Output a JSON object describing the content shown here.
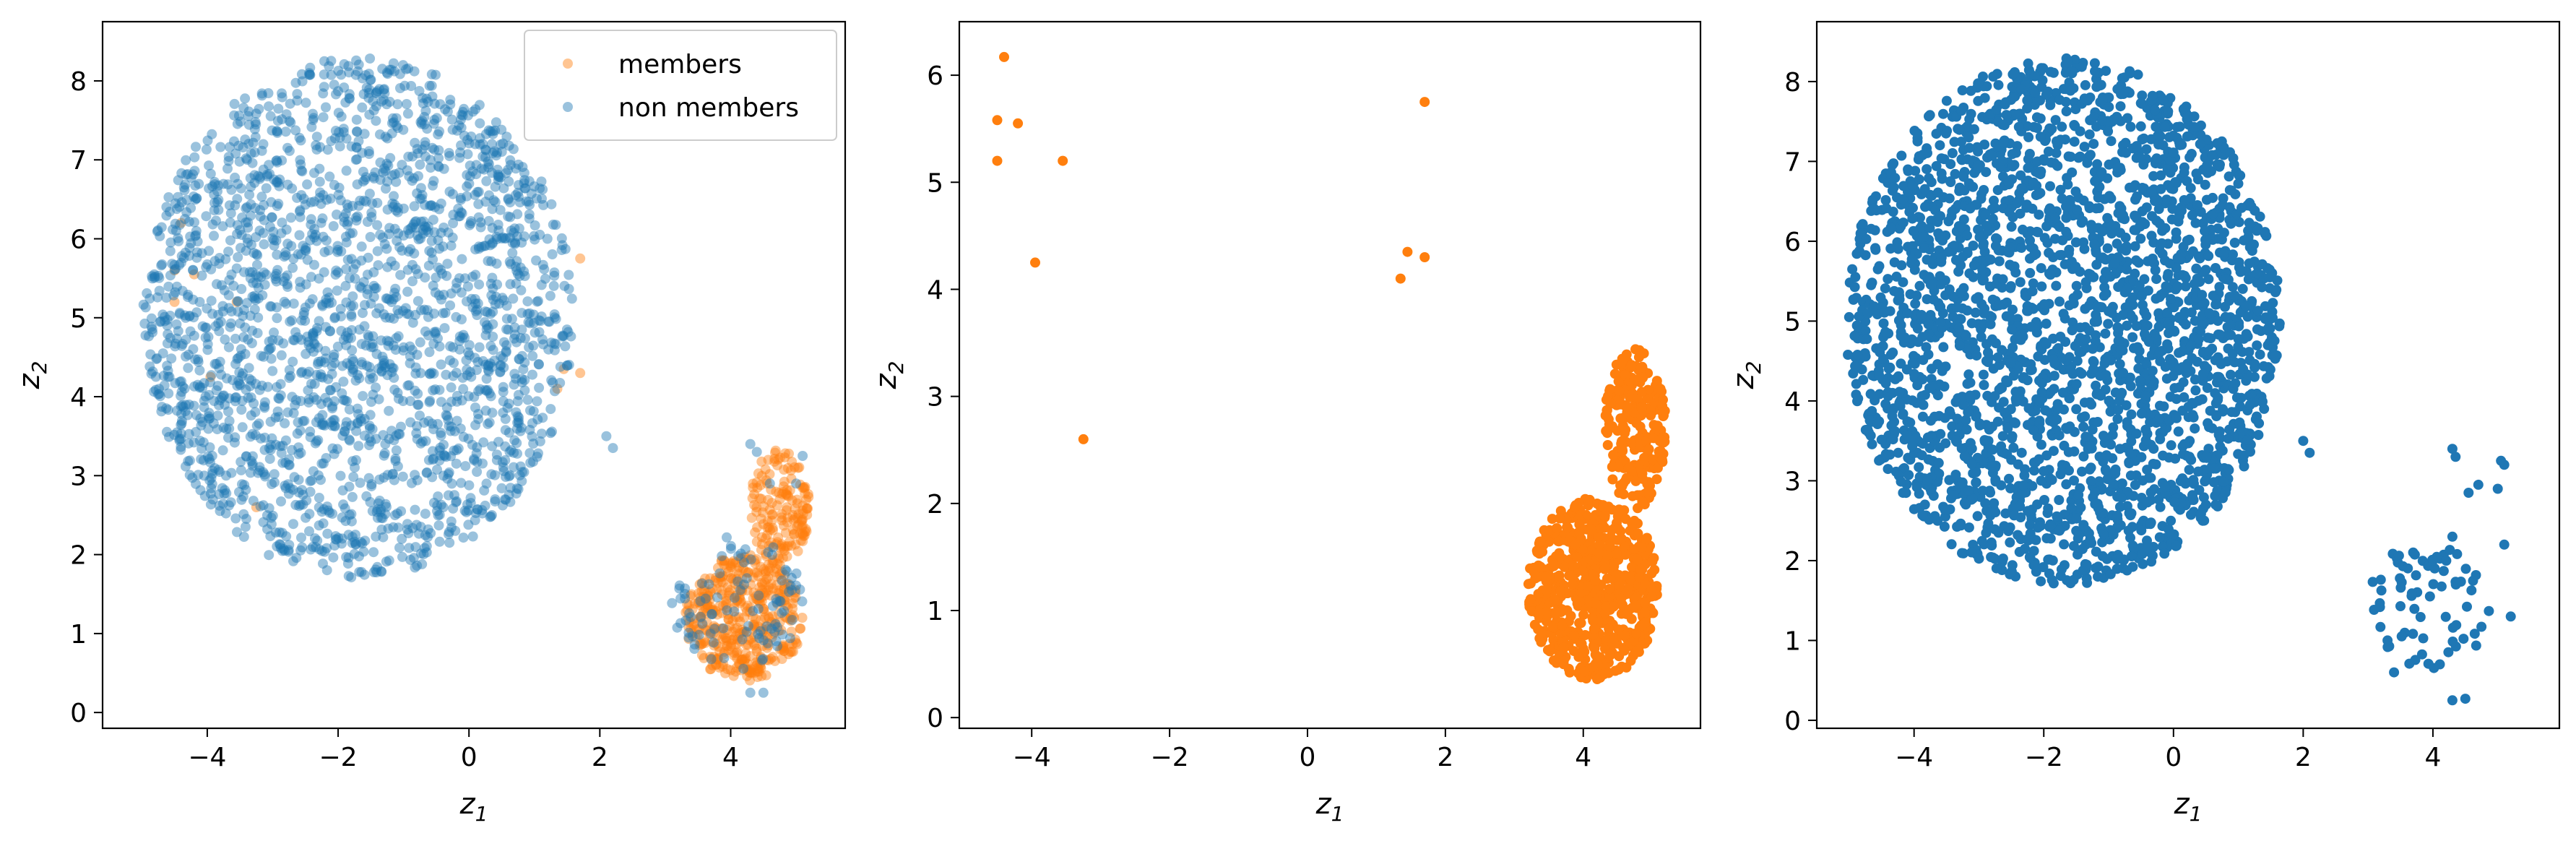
{
  "figure": {
    "background": "#ffffff"
  },
  "colors": {
    "members": "#ff7f0e",
    "non_members": "#1f77b4"
  },
  "chart_data": [
    {
      "type": "scatter",
      "xlabel": "z_1",
      "ylabel": "z_2",
      "xlim": [
        -5.6,
        5.75
      ],
      "ylim": [
        -0.2,
        8.75
      ],
      "xticks": [
        -4,
        -2,
        0,
        2,
        4
      ],
      "yticks": [
        0,
        1,
        2,
        3,
        4,
        5,
        6,
        7,
        8
      ],
      "grid": false,
      "legend": {
        "position": "top-right",
        "entries": [
          "members",
          "non members"
        ]
      },
      "series": [
        {
          "name": "members",
          "color": "#ff7f0e",
          "alpha": 0.45,
          "clusters": [
            {
              "shape": "blob",
              "center": [
                4.2,
                1.2
              ],
              "radius": [
                0.9,
                0.8
              ],
              "count": 420
            },
            {
              "shape": "blob",
              "center": [
                4.75,
                2.6
              ],
              "radius": [
                0.45,
                0.75
              ],
              "count": 160
            }
          ],
          "points": [
            [
              -4.4,
              6.2
            ],
            [
              -4.5,
              5.6
            ],
            [
              -4.2,
              5.55
            ],
            [
              -3.55,
              5.2
            ],
            [
              -4.5,
              5.2
            ],
            [
              -3.95,
              4.25
            ],
            [
              -3.25,
              2.6
            ],
            [
              1.7,
              5.75
            ],
            [
              1.45,
              4.35
            ],
            [
              1.35,
              4.1
            ],
            [
              1.7,
              4.3
            ]
          ]
        },
        {
          "name": "non members",
          "color": "#1f77b4",
          "alpha": 0.45,
          "clusters": [
            {
              "shape": "blob",
              "center": [
                -1.7,
                5.0
              ],
              "radius": [
                3.3,
                3.3
              ],
              "count": 2200
            },
            {
              "shape": "blob",
              "center": [
                4.1,
                1.4
              ],
              "radius": [
                1.0,
                0.85
              ],
              "count": 95
            }
          ],
          "points": [
            [
              2.1,
              3.5
            ],
            [
              2.2,
              3.35
            ],
            [
              0.4,
              2.7
            ],
            [
              0.55,
              2.7
            ],
            [
              0.35,
              2.5
            ],
            [
              4.3,
              0.25
            ],
            [
              4.5,
              0.25
            ],
            [
              4.3,
              3.4
            ],
            [
              4.4,
              3.3
            ],
            [
              5.1,
              3.25
            ],
            [
              5.0,
              2.9
            ],
            [
              4.6,
              2.9
            ]
          ]
        }
      ]
    },
    {
      "type": "scatter",
      "xlabel": "z_1",
      "ylabel": "z_2",
      "xlim": [
        -5.05,
        5.7
      ],
      "ylim": [
        -0.1,
        6.5
      ],
      "xticks": [
        -4,
        -2,
        0,
        2,
        4
      ],
      "yticks": [
        0,
        1,
        2,
        3,
        4,
        5,
        6
      ],
      "grid": false,
      "series": [
        {
          "name": "",
          "color": "#ff7f0e",
          "alpha": 1,
          "clusters": [
            {
              "shape": "blob",
              "center": [
                4.15,
                1.2
              ],
              "radius": [
                0.95,
                0.85
              ],
              "count": 650
            },
            {
              "shape": "blob",
              "center": [
                4.75,
                2.7
              ],
              "radius": [
                0.45,
                0.75
              ],
              "count": 220
            }
          ],
          "points": [
            [
              -4.4,
              6.17
            ],
            [
              -4.5,
              5.58
            ],
            [
              -4.2,
              5.55
            ],
            [
              -3.55,
              5.2
            ],
            [
              -4.5,
              5.2
            ],
            [
              -3.95,
              4.25
            ],
            [
              -3.25,
              2.6
            ],
            [
              1.7,
              5.75
            ],
            [
              1.45,
              4.35
            ],
            [
              1.35,
              4.1
            ],
            [
              1.7,
              4.3
            ]
          ]
        }
      ]
    },
    {
      "type": "scatter",
      "xlabel": "z_1",
      "ylabel": "z_2",
      "xlim": [
        -5.5,
        5.95
      ],
      "ylim": [
        -0.1,
        8.75
      ],
      "xticks": [
        -4,
        -2,
        0,
        2,
        4
      ],
      "yticks": [
        0,
        1,
        2,
        3,
        4,
        5,
        6,
        7,
        8
      ],
      "grid": false,
      "series": [
        {
          "name": "",
          "color": "#1f77b4",
          "alpha": 1,
          "clusters": [
            {
              "shape": "blob",
              "center": [
                -1.7,
                5.0
              ],
              "radius": [
                3.35,
                3.3
              ],
              "count": 2600
            },
            {
              "shape": "blob",
              "center": [
                3.95,
                1.45
              ],
              "radius": [
                0.95,
                0.8
              ],
              "count": 70
            }
          ],
          "points": [
            [
              2.0,
              3.5
            ],
            [
              2.1,
              3.35
            ],
            [
              0.5,
              2.7
            ],
            [
              0.65,
              2.7
            ],
            [
              0.45,
              2.5
            ],
            [
              4.3,
              0.25
            ],
            [
              4.5,
              0.27
            ],
            [
              4.3,
              3.4
            ],
            [
              4.35,
              3.3
            ],
            [
              5.05,
              3.25
            ],
            [
              5.1,
              3.2
            ],
            [
              5.0,
              2.9
            ],
            [
              4.55,
              2.85
            ],
            [
              4.7,
              2.95
            ],
            [
              5.2,
              1.3
            ],
            [
              5.1,
              2.2
            ],
            [
              3.3,
              1.0
            ],
            [
              3.4,
              0.6
            ],
            [
              4.3,
              2.3
            ],
            [
              4.0,
              2.0
            ]
          ]
        }
      ]
    }
  ]
}
